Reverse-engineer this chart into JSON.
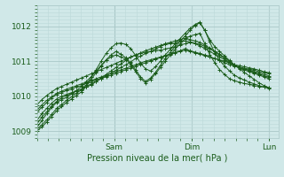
{
  "background_color": "#d0e8e8",
  "plot_bg_color": "#d0e8e8",
  "grid_color_major": "#aac8c8",
  "grid_color_minor": "#bcd8d8",
  "line_color": "#1a5c1a",
  "marker_color": "#1a5c1a",
  "xlabel": "Pression niveau de la mer( hPa )",
  "ylim": [
    1008.8,
    1012.6
  ],
  "yticks": [
    1009,
    1010,
    1011,
    1012
  ],
  "xlim_max": 1.04,
  "x_tick_positions": [
    0.333,
    0.667,
    1.0
  ],
  "x_tick_labels": [
    "Sam",
    "Dim",
    "Lun"
  ],
  "series": [
    [
      1009.3,
      1009.5,
      1009.65,
      1009.8,
      1009.92,
      1010.0,
      1010.05,
      1010.1,
      1010.15,
      1010.2,
      1010.28,
      1010.35,
      1010.42,
      1010.5,
      1010.58,
      1010.66,
      1010.74,
      1010.82,
      1010.9,
      1010.98,
      1011.08,
      1011.15,
      1011.22,
      1011.28,
      1011.35,
      1011.42,
      1011.48,
      1011.5,
      1011.52,
      1011.55,
      1011.58,
      1011.55,
      1011.52,
      1011.48,
      1011.42,
      1011.35,
      1011.28,
      1011.2,
      1011.1,
      1011.0,
      1010.88,
      1010.8,
      1010.75,
      1010.7,
      1010.65,
      1010.6,
      1010.55,
      1010.5
    ],
    [
      1009.2,
      1009.4,
      1009.55,
      1009.72,
      1009.85,
      1009.95,
      1010.02,
      1010.08,
      1010.14,
      1010.2,
      1010.26,
      1010.32,
      1010.42,
      1010.52,
      1010.62,
      1010.72,
      1010.82,
      1010.92,
      1011.02,
      1011.12,
      1011.18,
      1011.24,
      1011.3,
      1011.35,
      1011.4,
      1011.45,
      1011.5,
      1011.54,
      1011.58,
      1011.62,
      1011.66,
      1011.62,
      1011.58,
      1011.54,
      1011.46,
      1011.38,
      1011.28,
      1011.18,
      1011.08,
      1010.96,
      1010.88,
      1010.83,
      1010.78,
      1010.73,
      1010.68,
      1010.63,
      1010.58,
      1010.54
    ],
    [
      1009.6,
      1009.75,
      1009.88,
      1009.98,
      1010.08,
      1010.14,
      1010.2,
      1010.25,
      1010.3,
      1010.35,
      1010.4,
      1010.45,
      1010.5,
      1010.55,
      1010.6,
      1010.65,
      1010.7,
      1010.75,
      1010.8,
      1010.85,
      1010.9,
      1010.95,
      1011.0,
      1011.04,
      1011.08,
      1011.12,
      1011.16,
      1011.2,
      1011.24,
      1011.28,
      1011.32,
      1011.28,
      1011.24,
      1011.2,
      1011.16,
      1011.12,
      1011.08,
      1011.04,
      1011.0,
      1010.95,
      1010.9,
      1010.87,
      1010.84,
      1010.81,
      1010.78,
      1010.74,
      1010.7,
      1010.67
    ],
    [
      1009.55,
      1009.68,
      1009.82,
      1009.95,
      1010.05,
      1010.1,
      1010.16,
      1010.2,
      1010.26,
      1010.3,
      1010.36,
      1010.4,
      1010.46,
      1010.5,
      1010.56,
      1010.6,
      1010.66,
      1010.7,
      1010.76,
      1010.8,
      1010.86,
      1010.9,
      1010.96,
      1011.0,
      1011.06,
      1011.1,
      1011.16,
      1011.2,
      1011.26,
      1011.3,
      1011.36,
      1011.3,
      1011.26,
      1011.22,
      1011.18,
      1011.12,
      1011.08,
      1011.02,
      1010.96,
      1010.9,
      1010.86,
      1010.83,
      1010.8,
      1010.77,
      1010.74,
      1010.7,
      1010.67,
      1010.64
    ],
    [
      1009.1,
      1009.3,
      1009.5,
      1009.68,
      1009.82,
      1009.9,
      1009.96,
      1010.06,
      1010.16,
      1010.28,
      1010.42,
      1010.56,
      1010.72,
      1010.88,
      1011.04,
      1011.18,
      1011.28,
      1011.2,
      1011.1,
      1010.95,
      1010.75,
      1010.55,
      1010.42,
      1010.52,
      1010.68,
      1010.88,
      1011.08,
      1011.25,
      1011.42,
      1011.58,
      1011.72,
      1011.88,
      1012.02,
      1012.1,
      1011.88,
      1011.62,
      1011.42,
      1011.28,
      1011.15,
      1011.02,
      1010.9,
      1010.78,
      1010.68,
      1010.58,
      1010.48,
      1010.38,
      1010.3,
      1010.24
    ],
    [
      1009.75,
      1009.9,
      1010.02,
      1010.12,
      1010.22,
      1010.28,
      1010.34,
      1010.4,
      1010.46,
      1010.52,
      1010.58,
      1010.64,
      1010.7,
      1010.76,
      1010.82,
      1010.88,
      1010.94,
      1011.0,
      1011.06,
      1011.12,
      1011.18,
      1011.22,
      1011.26,
      1011.28,
      1011.3,
      1011.32,
      1011.35,
      1011.38,
      1011.42,
      1011.46,
      1011.5,
      1011.54,
      1011.5,
      1011.44,
      1011.36,
      1011.28,
      1011.2,
      1011.12,
      1011.04,
      1010.95,
      1010.88,
      1010.82,
      1010.78,
      1010.74,
      1010.7,
      1010.66,
      1010.62,
      1010.58
    ],
    [
      1009.0,
      1009.12,
      1009.26,
      1009.42,
      1009.58,
      1009.7,
      1009.82,
      1009.92,
      1010.02,
      1010.12,
      1010.28,
      1010.48,
      1010.68,
      1010.86,
      1011.02,
      1011.12,
      1011.18,
      1011.12,
      1011.06,
      1010.9,
      1010.7,
      1010.5,
      1010.38,
      1010.48,
      1010.64,
      1010.82,
      1011.0,
      1011.18,
      1011.34,
      1011.5,
      1011.64,
      1011.72,
      1011.76,
      1011.8,
      1011.5,
      1011.18,
      1010.96,
      1010.76,
      1010.62,
      1010.5,
      1010.44,
      1010.4,
      1010.36,
      1010.34,
      1010.3,
      1010.28,
      1010.26,
      1010.24
    ],
    [
      1009.05,
      1009.18,
      1009.32,
      1009.48,
      1009.65,
      1009.76,
      1009.88,
      1009.98,
      1010.08,
      1010.18,
      1010.32,
      1010.54,
      1010.76,
      1011.0,
      1011.22,
      1011.38,
      1011.5,
      1011.52,
      1011.48,
      1011.36,
      1011.16,
      1010.94,
      1010.78,
      1010.72,
      1010.84,
      1011.0,
      1011.18,
      1011.34,
      1011.5,
      1011.65,
      1011.8,
      1011.94,
      1012.05,
      1012.12,
      1011.88,
      1011.55,
      1011.24,
      1011.02,
      1010.86,
      1010.72,
      1010.6,
      1010.52,
      1010.46,
      1010.4,
      1010.35,
      1010.3,
      1010.26,
      1010.22
    ]
  ]
}
